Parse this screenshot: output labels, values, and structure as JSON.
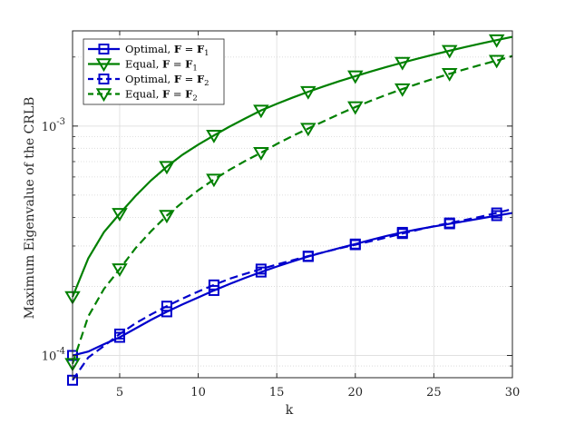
{
  "chart_data": {
    "type": "line",
    "xlabel": "k",
    "ylabel": "Maximum Eigenvalue of the CRLB",
    "xlim": [
      2,
      30
    ],
    "ylim": [
      8e-05,
      0.0026
    ],
    "yscale": "log",
    "x_ticks": [
      "5",
      "10",
      "15",
      "20",
      "25",
      "30"
    ],
    "y_ticks": [
      {
        "value": 0.0001,
        "base": "10",
        "exp": "-4"
      },
      {
        "value": 0.001,
        "base": "10",
        "exp": "-3"
      }
    ],
    "grid": true,
    "legend_position": "top-left",
    "series": [
      {
        "name": "Optimal, F = F1",
        "legend_prefix": "Optimal, ",
        "color": "#0000cc",
        "dash": "solid",
        "marker": "square",
        "x": [
          2,
          3,
          4,
          5,
          6,
          7,
          8,
          9,
          10,
          11,
          12,
          13,
          14,
          15,
          16,
          17,
          18,
          19,
          20,
          21,
          22,
          23,
          24,
          25,
          26,
          27,
          28,
          29,
          30
        ],
        "y": [
          0.0001,
          0.000104,
          0.000112,
          0.00012,
          0.000131,
          0.000143,
          0.000155,
          0.000167,
          0.000179,
          0.000192,
          0.000205,
          0.000218,
          0.000231,
          0.000244,
          0.000257,
          0.00027,
          0.000282,
          0.000294,
          0.000306,
          0.000319,
          0.000332,
          0.000344,
          0.000355,
          0.000365,
          0.000375,
          0.000385,
          0.000396,
          0.000407,
          0.000418
        ],
        "marker_x": [
          2,
          5,
          8,
          11,
          14,
          17,
          20,
          23,
          26,
          29
        ]
      },
      {
        "name": "Equal, F = F1",
        "legend_prefix": "Equal, ",
        "color": "#008000",
        "dash": "solid",
        "marker": "triangle-down",
        "x": [
          2,
          3,
          4,
          5,
          6,
          7,
          8,
          9,
          10,
          11,
          12,
          13,
          14,
          15,
          16,
          17,
          18,
          19,
          20,
          21,
          22,
          23,
          24,
          25,
          26,
          27,
          28,
          29,
          30
        ],
        "y": [
          0.00018,
          0.000265,
          0.000345,
          0.000415,
          0.000495,
          0.00058,
          0.000665,
          0.00075,
          0.00083,
          0.00091,
          0.000995,
          0.00108,
          0.00117,
          0.00125,
          0.00133,
          0.00141,
          0.00149,
          0.00157,
          0.00165,
          0.00173,
          0.00181,
          0.00189,
          0.00197,
          0.00205,
          0.00213,
          0.00221,
          0.00229,
          0.00237,
          0.00245
        ],
        "marker_x": [
          2,
          5,
          8,
          11,
          14,
          17,
          20,
          23,
          26,
          29
        ]
      },
      {
        "name": "Optimal, F = F2",
        "legend_prefix": "Optimal, ",
        "color": "#0000cc",
        "dash": "dashed",
        "marker": "square",
        "x": [
          2,
          3,
          4,
          5,
          6,
          7,
          8,
          9,
          10,
          11,
          12,
          13,
          14,
          15,
          16,
          17,
          18,
          19,
          20,
          21,
          22,
          23,
          24,
          25,
          26,
          27,
          28,
          29,
          30
        ],
        "y": [
          7.8e-05,
          9.8e-05,
          0.00011,
          0.000124,
          0.000138,
          0.000151,
          0.000164,
          0.000177,
          0.00019,
          0.000203,
          0.000216,
          0.000227,
          0.000238,
          0.000249,
          0.00026,
          0.000271,
          0.000282,
          0.000293,
          0.000304,
          0.000315,
          0.000327,
          0.00034,
          0.000353,
          0.000366,
          0.000378,
          0.00039,
          0.000403,
          0.000418,
          0.000435
        ],
        "marker_x": [
          2,
          5,
          8,
          11,
          14,
          17,
          20,
          23,
          26,
          29
        ]
      },
      {
        "name": "Equal, F = F2",
        "legend_prefix": "Equal, ",
        "color": "#008000",
        "dash": "dashed",
        "marker": "triangle-down",
        "x": [
          2,
          3,
          4,
          5,
          6,
          7,
          8,
          9,
          10,
          11,
          12,
          13,
          14,
          15,
          16,
          17,
          18,
          19,
          20,
          21,
          22,
          23,
          24,
          25,
          26,
          27,
          28,
          29,
          30
        ],
        "y": [
          9.2e-05,
          0.000148,
          0.000195,
          0.000238,
          0.000293,
          0.000348,
          0.000407,
          0.000465,
          0.000525,
          0.000585,
          0.000645,
          0.000705,
          0.000765,
          0.000835,
          0.000905,
          0.000975,
          0.00105,
          0.00113,
          0.00121,
          0.00129,
          0.00137,
          0.00145,
          0.00153,
          0.00161,
          0.00169,
          0.00177,
          0.00185,
          0.00193,
          0.00202
        ],
        "marker_x": [
          2,
          5,
          8,
          11,
          14,
          17,
          20,
          23,
          26,
          29
        ]
      }
    ]
  }
}
